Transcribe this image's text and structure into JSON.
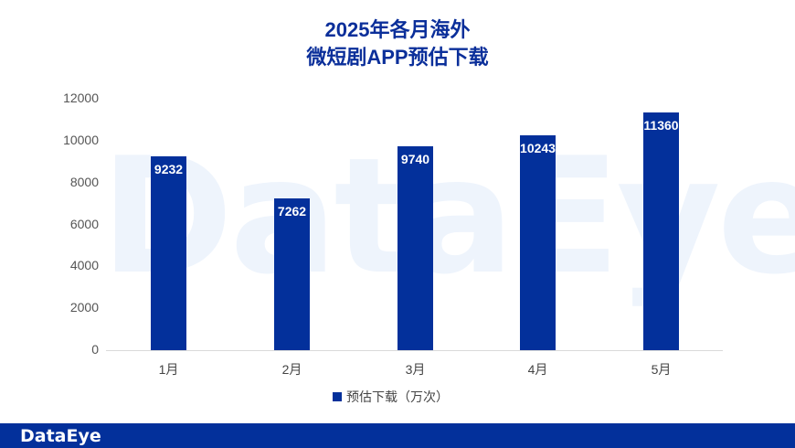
{
  "title": {
    "line1": "2025年各月海外",
    "line2": "微短剧APP预估下载"
  },
  "watermark": "DataEye",
  "footer": {
    "logo": "DataEye"
  },
  "colors": {
    "bar": "#03309b",
    "title": "#0b2f9a",
    "footer": "#03309b"
  },
  "y_ticks": [
    "12000",
    "10000",
    "8000",
    "6000",
    "4000",
    "2000",
    "0"
  ],
  "bars": [
    {
      "month": "1月",
      "value": 9232,
      "label": "9232"
    },
    {
      "month": "2月",
      "value": 7262,
      "label": "7262"
    },
    {
      "month": "3月",
      "value": 9740,
      "label": "9740"
    },
    {
      "month": "4月",
      "value": 10243,
      "label": "10243"
    },
    {
      "month": "5月",
      "value": 11360,
      "label": "11360"
    }
  ],
  "legend": {
    "label": "预估下载（万次）"
  },
  "chart_data": {
    "type": "bar",
    "title": "2025年各月海外微短剧APP预估下载",
    "categories": [
      "1月",
      "2月",
      "3月",
      "4月",
      "5月"
    ],
    "series": [
      {
        "name": "预估下载（万次）",
        "values": [
          9232,
          7262,
          9740,
          10243,
          11360
        ]
      }
    ],
    "xlabel": "",
    "ylabel": "",
    "ylim": [
      0,
      12000
    ],
    "yticks": [
      0,
      2000,
      4000,
      6000,
      8000,
      10000,
      12000
    ],
    "grid": false,
    "legend_position": "bottom",
    "data_labels": true
  }
}
